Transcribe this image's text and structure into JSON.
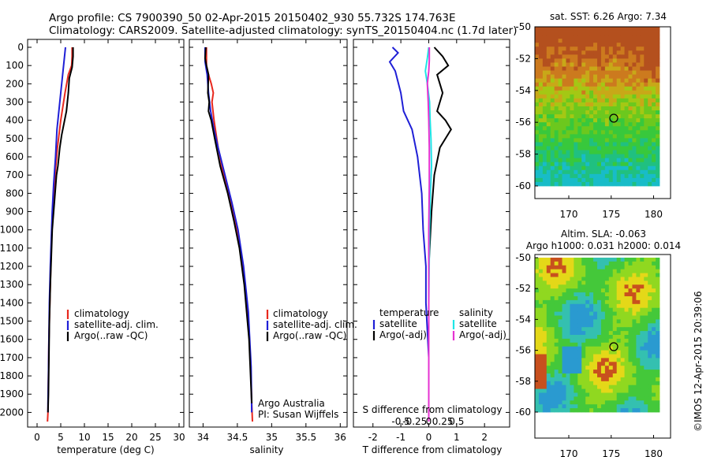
{
  "header": {
    "line1": "Argo profile: CS 7900390_50 02-Apr-2015 20150402_930 55.732S 174.763E",
    "line2": "Climatology: CARS2009. Satellite-adjusted climatology: synTS_20150404.nc (1.7d later)"
  },
  "colors": {
    "climatology": "#e8281e",
    "satellite": "#1f1fd6",
    "argo": "#000000",
    "satellite_s": "#1ee6e6",
    "argo_s": "#e632d2"
  },
  "credits": {
    "line1": "Argo Australia",
    "line2": "PI: Susan Wijffels",
    "stamp": "©IMOS 12-Apr-2015 20:39:06"
  },
  "chart_data": [
    {
      "type": "line",
      "xlabel": "temperature (deg C)",
      "xlim": [
        -2,
        31
      ],
      "xticks": [
        0,
        5,
        10,
        15,
        20,
        25,
        30
      ],
      "ylim": [
        2050,
        0
      ],
      "yticks": [
        0,
        100,
        200,
        300,
        400,
        500,
        600,
        700,
        800,
        900,
        1000,
        1100,
        1200,
        1300,
        1400,
        1500,
        1600,
        1700,
        1800,
        1900,
        2000
      ],
      "legend": [
        "climatology",
        "satellite-adj. clim.",
        "Argo(..raw -QC)"
      ],
      "series": [
        {
          "name": "climatology",
          "color": "#e8281e",
          "x": [
            7.4,
            7.4,
            7.3,
            6.6,
            5.9,
            5.0,
            4.3,
            3.8,
            3.4,
            3.1,
            2.9,
            2.7,
            2.5,
            2.4,
            2.3,
            2.2
          ],
          "y": [
            0,
            50,
            100,
            150,
            250,
            400,
            550,
            700,
            850,
            1000,
            1200,
            1400,
            1600,
            1800,
            2000,
            2050
          ]
        },
        {
          "name": "satellite-adj. clim.",
          "color": "#1f1fd6",
          "x": [
            6.0,
            5.8,
            5.4,
            5.0,
            4.6,
            4.2,
            3.9,
            3.5,
            3.2,
            3.0,
            2.8,
            2.6,
            2.5,
            2.4,
            2.3,
            2.3
          ],
          "y": [
            0,
            50,
            150,
            250,
            350,
            450,
            600,
            750,
            900,
            1050,
            1200,
            1400,
            1600,
            1800,
            1950,
            2000
          ]
        },
        {
          "name": "Argo(..raw -QC)",
          "color": "#000000",
          "x": [
            7.6,
            7.6,
            7.4,
            6.8,
            6.6,
            6.2,
            5.2,
            4.8,
            4.4,
            4.1,
            3.8,
            3.5,
            3.2,
            3.0,
            2.8,
            2.6,
            2.5,
            2.4,
            2.3
          ],
          "y": [
            0,
            50,
            110,
            170,
            250,
            350,
            480,
            550,
            650,
            700,
            800,
            900,
            1000,
            1150,
            1300,
            1500,
            1700,
            1900,
            2000
          ]
        }
      ]
    },
    {
      "type": "line",
      "xlabel": "salinity",
      "xlim": [
        33.8,
        36.1
      ],
      "xticks": [
        34,
        34.5,
        35,
        35.5,
        36
      ],
      "ylim": [
        2050,
        0
      ],
      "legend": [
        "climatology",
        "satellite-adj. clim.",
        "Argo(..raw -QC)"
      ],
      "series": [
        {
          "name": "climatology",
          "color": "#e8281e",
          "x": [
            34.05,
            34.05,
            34.08,
            34.12,
            34.15,
            34.13,
            34.16,
            34.22,
            34.3,
            34.4,
            34.5,
            34.58,
            34.65,
            34.69,
            34.71,
            34.72
          ],
          "y": [
            0,
            100,
            150,
            200,
            250,
            300,
            400,
            550,
            700,
            850,
            1000,
            1200,
            1450,
            1700,
            1950,
            2050
          ]
        },
        {
          "name": "satellite-adj. clim.",
          "color": "#1f1fd6",
          "x": [
            34.03,
            34.03,
            34.06,
            34.08,
            34.11,
            34.16,
            34.22,
            34.32,
            34.42,
            34.51,
            34.59,
            34.66,
            34.7,
            34.71
          ],
          "y": [
            0,
            80,
            150,
            250,
            350,
            450,
            550,
            700,
            850,
            1000,
            1200,
            1450,
            1750,
            2000
          ]
        },
        {
          "name": "Argo(..raw -QC)",
          "color": "#000000",
          "x": [
            34.04,
            34.03,
            34.05,
            34.08,
            34.07,
            34.09,
            34.08,
            34.12,
            34.17,
            34.25,
            34.36,
            34.45,
            34.53,
            34.6,
            34.67,
            34.71
          ],
          "y": [
            0,
            60,
            100,
            150,
            250,
            300,
            350,
            400,
            500,
            650,
            800,
            950,
            1100,
            1300,
            1600,
            1950
          ]
        }
      ]
    },
    {
      "type": "line",
      "xlabel": "T difference from climatology",
      "xlabel_top": "S difference from climatology",
      "xlim": [
        -2.7,
        2.9
      ],
      "xticks": [
        -2,
        -1,
        0,
        1,
        2
      ],
      "xticks_s": [
        -0.5,
        -0.25,
        0,
        0.25,
        0.5
      ],
      "ylim": [
        2050,
        0
      ],
      "legend": {
        "temperature": {
          "title": "temperature",
          "items": [
            "satellite",
            "Argo(-adj)"
          ]
        },
        "salinity": {
          "title": "salinity",
          "items": [
            "satellite",
            "Argo(-adj)"
          ]
        }
      },
      "series": [
        {
          "name": "temperature satellite",
          "color": "#1f1fd6",
          "x": [
            -1.3,
            -1.1,
            -1.4,
            -1.2,
            -1.0,
            -0.9,
            -0.6,
            -0.4,
            -0.25,
            -0.2,
            -0.1,
            -0.1,
            0,
            0
          ],
          "y": [
            0,
            30,
            80,
            130,
            250,
            350,
            450,
            600,
            800,
            1000,
            1200,
            1400,
            1700,
            2050
          ]
        },
        {
          "name": "temperature Argo(-adj)",
          "color": "#000000",
          "x": [
            0.2,
            0.5,
            0.7,
            0.3,
            0.5,
            0.3,
            0.6,
            0.8,
            0.4,
            0.2,
            0.1,
            0.0,
            0.0,
            0.0
          ],
          "y": [
            0,
            50,
            100,
            150,
            250,
            350,
            400,
            450,
            550,
            700,
            900,
            1200,
            1600,
            2050
          ]
        },
        {
          "name": "salinity satellite",
          "color": "#1ee6e6",
          "x": [
            0.0,
            -0.05,
            -0.12,
            -0.05,
            0.03,
            0.05,
            0.08,
            0.1,
            0.06,
            0.03,
            0.0,
            0.0
          ],
          "y": [
            0,
            60,
            130,
            200,
            300,
            400,
            500,
            650,
            800,
            1000,
            1400,
            2050
          ]
        },
        {
          "name": "salinity Argo(-adj)",
          "color": "#e632d2",
          "x": [
            0.02,
            0.02,
            0.0,
            -0.05,
            -0.02,
            0.0,
            0.02,
            0.02,
            0.0,
            0.0
          ],
          "y": [
            0,
            70,
            130,
            200,
            300,
            400,
            550,
            750,
            1000,
            2050
          ]
        }
      ]
    },
    {
      "type": "heatmap",
      "title": "sat. SST: 6.26 Argo: 7.34",
      "xticks": [
        170,
        175,
        180
      ],
      "yticks": [
        -50,
        -52,
        -54,
        -56,
        -58,
        -60
      ],
      "xlim": [
        166,
        182
      ],
      "ylim": [
        -60,
        -50
      ],
      "marker": {
        "lon": 174.763,
        "lat": -55.732
      }
    },
    {
      "type": "heatmap",
      "title": "Altim. SLA: -0.063",
      "subtitle": "Argo h1000: 0.031 h2000: 0.014",
      "xticks": [
        170,
        175,
        180
      ],
      "yticks": [
        -50,
        -52,
        -54,
        -56,
        -58,
        -60
      ],
      "xlim": [
        166,
        182
      ],
      "ylim": [
        -60,
        -50
      ],
      "marker": {
        "lon": 174.763,
        "lat": -55.732
      }
    }
  ]
}
